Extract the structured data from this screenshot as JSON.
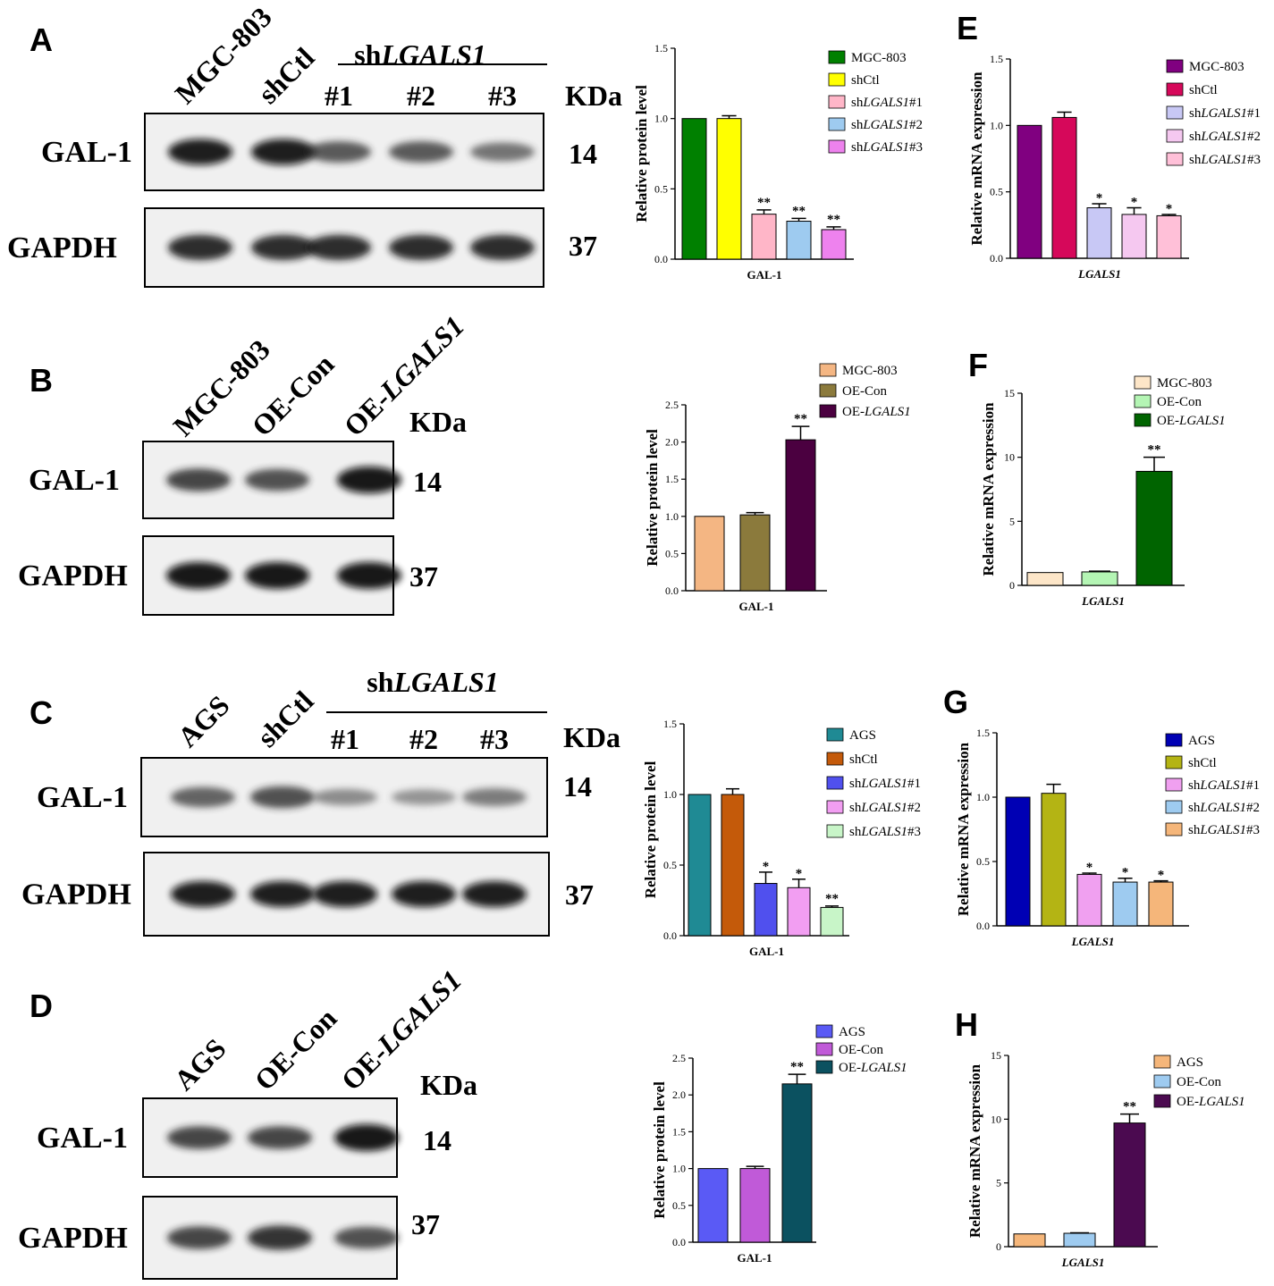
{
  "blots": [
    {
      "panel": "A",
      "lanes": [
        "MGC-803",
        "shCtl",
        "#1",
        "#2",
        "#3"
      ],
      "group_label": "shLGALS1",
      "kda_label": "KDa",
      "rows": [
        {
          "label": "GAL-1",
          "kda": "14",
          "intensities": [
            0.95,
            0.95,
            0.65,
            0.65,
            0.5
          ]
        },
        {
          "label": "GAPDH",
          "kda": "37",
          "intensities": [
            0.9,
            0.9,
            0.9,
            0.9,
            0.9
          ]
        }
      ]
    },
    {
      "panel": "B",
      "lanes": [
        "MGC-803",
        "OE-Con",
        "OE-LGALS1"
      ],
      "kda_label": "KDa",
      "rows": [
        {
          "label": "GAL-1",
          "kda": "14",
          "intensities": [
            0.75,
            0.7,
            1.0
          ]
        },
        {
          "label": "GAPDH",
          "kda": "37",
          "intensities": [
            1.0,
            1.0,
            1.0
          ]
        }
      ]
    },
    {
      "panel": "C",
      "lanes": [
        "AGS",
        "shCtl",
        "#1",
        "#2",
        "#3"
      ],
      "group_label": "shLGALS1",
      "kda_label": "KDa",
      "rows": [
        {
          "label": "GAL-1",
          "kda": "14",
          "intensities": [
            0.6,
            0.7,
            0.35,
            0.3,
            0.45
          ]
        },
        {
          "label": "GAPDH",
          "kda": "37",
          "intensities": [
            0.95,
            0.95,
            0.95,
            0.95,
            0.95
          ]
        }
      ]
    },
    {
      "panel": "D",
      "lanes": [
        "AGS",
        "OE-Con",
        "OE-LGALS1"
      ],
      "kda_label": "KDa",
      "rows": [
        {
          "label": "GAL-1",
          "kda": "14",
          "intensities": [
            0.75,
            0.75,
            1.0
          ]
        },
        {
          "label": "GAPDH",
          "kda": "37",
          "intensities": [
            0.75,
            0.85,
            0.7
          ]
        }
      ]
    }
  ],
  "chart_data": [
    {
      "panel": "A",
      "type": "bar",
      "categories": [
        "GAL-1"
      ],
      "xlabel": "GAL-1",
      "ylabel": "Relative protein level",
      "ylim": [
        0,
        1.5
      ],
      "yticks": [
        "0.0",
        "0.5",
        "1.0",
        "1.5"
      ],
      "legend_position": "top-right",
      "series": [
        {
          "name": "MGC-803",
          "value": 1.0,
          "error": 0.0,
          "color": "#008000",
          "sig": ""
        },
        {
          "name": "shCtl",
          "value": 1.0,
          "error": 0.02,
          "color": "#ffff00",
          "sig": ""
        },
        {
          "name": "shLGALS1#1",
          "value": 0.32,
          "error": 0.03,
          "color": "#ffb6c8",
          "sig": "**"
        },
        {
          "name": "shLGALS1#2",
          "value": 0.27,
          "error": 0.02,
          "color": "#9ecbf0",
          "sig": "**"
        },
        {
          "name": "shLGALS1#3",
          "value": 0.21,
          "error": 0.02,
          "color": "#ee82ee",
          "sig": "**"
        }
      ]
    },
    {
      "panel": "B",
      "type": "bar",
      "categories": [
        "GAL-1"
      ],
      "xlabel": "GAL-1",
      "ylabel": "Relative protein level",
      "ylim": [
        0,
        2.5
      ],
      "yticks": [
        "0.0",
        "0.5",
        "1.0",
        "1.5",
        "2.0",
        "2.5"
      ],
      "legend_position": "top-right",
      "series": [
        {
          "name": "MGC-803",
          "value": 1.0,
          "error": 0.0,
          "color": "#f4b683",
          "sig": ""
        },
        {
          "name": "OE-Con",
          "value": 1.02,
          "error": 0.03,
          "color": "#8b7a3c",
          "sig": ""
        },
        {
          "name": "OE-LGALS1",
          "value": 2.03,
          "error": 0.18,
          "color": "#4b0040",
          "sig": "**"
        }
      ]
    },
    {
      "panel": "C",
      "type": "bar",
      "categories": [
        "GAL-1"
      ],
      "xlabel": "GAL-1",
      "ylabel": "Relative protein level",
      "ylim": [
        0,
        1.5
      ],
      "yticks": [
        "0.0",
        "0.5",
        "1.0",
        "1.5"
      ],
      "legend_position": "top-right",
      "series": [
        {
          "name": "AGS",
          "value": 1.0,
          "error": 0.0,
          "color": "#1f8a94",
          "sig": ""
        },
        {
          "name": "shCtl",
          "value": 1.0,
          "error": 0.04,
          "color": "#c45a0a",
          "sig": ""
        },
        {
          "name": "shLGALS1#1",
          "value": 0.37,
          "error": 0.08,
          "color": "#5050ee",
          "sig": "*"
        },
        {
          "name": "shLGALS1#2",
          "value": 0.34,
          "error": 0.06,
          "color": "#f29ef2",
          "sig": "*"
        },
        {
          "name": "shLGALS1#3",
          "value": 0.2,
          "error": 0.01,
          "color": "#c8f5c8",
          "sig": "**"
        }
      ]
    },
    {
      "panel": "D",
      "type": "bar",
      "categories": [
        "GAL-1"
      ],
      "xlabel": "GAL-1",
      "ylabel": "Relative protein level",
      "ylim": [
        0,
        2.5
      ],
      "yticks": [
        "0.0",
        "0.5",
        "1.0",
        "1.5",
        "2.0",
        "2.5"
      ],
      "legend_position": "top-right",
      "series": [
        {
          "name": "AGS",
          "value": 1.0,
          "error": 0.0,
          "color": "#5a5af5",
          "sig": ""
        },
        {
          "name": "OE-Con",
          "value": 1.0,
          "error": 0.03,
          "color": "#c05ad8",
          "sig": ""
        },
        {
          "name": "OE-LGALS1",
          "value": 2.15,
          "error": 0.13,
          "color": "#0b5160",
          "sig": "**"
        }
      ]
    },
    {
      "panel": "E",
      "type": "bar",
      "categories": [
        "LGALS1"
      ],
      "xlabel": "LGALS1",
      "ylabel": "Relative mRNA expression",
      "ylim": [
        0,
        1.5
      ],
      "yticks": [
        "0.0",
        "0.5",
        "1.0",
        "1.5"
      ],
      "legend_position": "top-right",
      "series": [
        {
          "name": "MGC-803",
          "value": 1.0,
          "error": 0.0,
          "color": "#800080",
          "sig": ""
        },
        {
          "name": "shCtl",
          "value": 1.06,
          "error": 0.04,
          "color": "#d6085a",
          "sig": ""
        },
        {
          "name": "shLGALS1#1",
          "value": 0.38,
          "error": 0.03,
          "color": "#c8c8f5",
          "sig": "*"
        },
        {
          "name": "shLGALS1#2",
          "value": 0.33,
          "error": 0.05,
          "color": "#f5c8f0",
          "sig": "*"
        },
        {
          "name": "shLGALS1#3",
          "value": 0.32,
          "error": 0.01,
          "color": "#ffc0d8",
          "sig": "*"
        }
      ]
    },
    {
      "panel": "F",
      "type": "bar",
      "categories": [
        "LGALS1"
      ],
      "xlabel": "LGALS1",
      "ylabel": "Relative mRNA expression",
      "ylim": [
        0,
        15
      ],
      "yticks": [
        "0",
        "5",
        "10",
        "15"
      ],
      "legend_position": "top-right",
      "series": [
        {
          "name": "MGC-803",
          "value": 1.0,
          "error": 0.0,
          "color": "#fde6c8",
          "sig": ""
        },
        {
          "name": "OE-Con",
          "value": 1.05,
          "error": 0.06,
          "color": "#b4f5b4",
          "sig": ""
        },
        {
          "name": "OE-LGALS1",
          "value": 8.9,
          "error": 1.1,
          "color": "#006400",
          "sig": "**"
        }
      ]
    },
    {
      "panel": "G",
      "type": "bar",
      "categories": [
        "LGALS1"
      ],
      "xlabel": "LGALS1",
      "ylabel": "Relative mRNA expression",
      "ylim": [
        0,
        1.5
      ],
      "yticks": [
        "0.0",
        "0.5",
        "1.0",
        "1.5"
      ],
      "legend_position": "top-right",
      "series": [
        {
          "name": "AGS",
          "value": 1.0,
          "error": 0.0,
          "color": "#0000b4",
          "sig": ""
        },
        {
          "name": "shCtl",
          "value": 1.03,
          "error": 0.07,
          "color": "#b4b414",
          "sig": ""
        },
        {
          "name": "shLGALS1#1",
          "value": 0.4,
          "error": 0.01,
          "color": "#f0a0f0",
          "sig": "*"
        },
        {
          "name": "shLGALS1#2",
          "value": 0.34,
          "error": 0.03,
          "color": "#9ecbf0",
          "sig": "*"
        },
        {
          "name": "shLGALS1#3",
          "value": 0.34,
          "error": 0.01,
          "color": "#f5b67a",
          "sig": "*"
        }
      ]
    },
    {
      "panel": "H",
      "type": "bar",
      "categories": [
        "LGALS1"
      ],
      "xlabel": "LGALS1",
      "ylabel": "Relative mRNA expression",
      "ylim": [
        0,
        15
      ],
      "yticks": [
        "0",
        "5",
        "10",
        "15"
      ],
      "legend_position": "top-right",
      "series": [
        {
          "name": "AGS",
          "value": 1.0,
          "error": 0.0,
          "color": "#f5b67a",
          "sig": ""
        },
        {
          "name": "OE-Con",
          "value": 1.05,
          "error": 0.04,
          "color": "#9ecbf0",
          "sig": ""
        },
        {
          "name": "OE-LGALS1",
          "value": 9.7,
          "error": 0.7,
          "color": "#4b0a50",
          "sig": "**"
        }
      ]
    }
  ]
}
